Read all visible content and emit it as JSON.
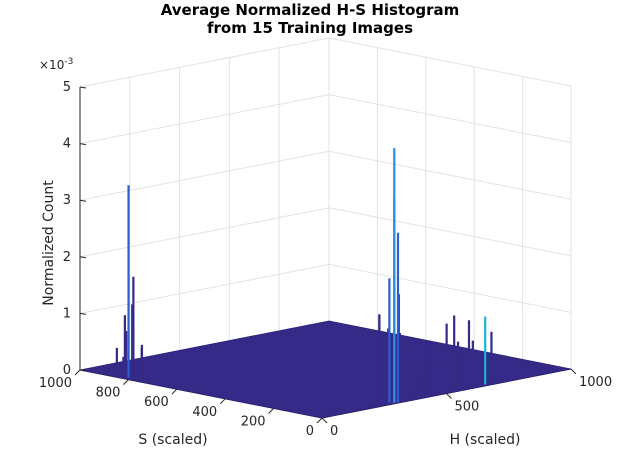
{
  "chart_data": {
    "type": "surface",
    "title": [
      "Average Normalized H-S Histogram",
      "from 15 Training Images"
    ],
    "xlabel": "H (scaled)",
    "ylabel": "S (scaled)",
    "zlabel": "Normalized Count",
    "z_exponent_base": "×10",
    "z_exponent_power": "-3",
    "xlim": [
      0,
      1000
    ],
    "ylim": [
      0,
      1000
    ],
    "zlim": [
      0,
      0.005
    ],
    "x_ticks": [
      {
        "value": 0,
        "label": "0"
      },
      {
        "value": 500,
        "label": "500"
      },
      {
        "value": 1000,
        "label": "1000"
      }
    ],
    "y_ticks": [
      {
        "value": 0,
        "label": "0"
      },
      {
        "value": 200,
        "label": "200"
      },
      {
        "value": 400,
        "label": "400"
      },
      {
        "value": 600,
        "label": "600"
      },
      {
        "value": 800,
        "label": "800"
      },
      {
        "value": 1000,
        "label": "1000"
      }
    ],
    "z_ticks": [
      {
        "value": 0,
        "label": "0"
      },
      {
        "value": 1,
        "label": "1"
      },
      {
        "value": 2,
        "label": "2"
      },
      {
        "value": 3,
        "label": "3"
      },
      {
        "value": 4,
        "label": "4"
      },
      {
        "value": 5,
        "label": "5"
      }
    ],
    "grid": true,
    "colormap": "parula",
    "surface_color": "#352a87",
    "peak_colors": [
      "#2a5fcf",
      "#2e8ce0",
      "#1fb0d8"
    ],
    "peaks": [
      {
        "x": 20,
        "y": 820,
        "z": 3.4
      },
      {
        "x": 20,
        "y": 800,
        "z": 1.8
      },
      {
        "x": 25,
        "y": 810,
        "z": 1.3
      },
      {
        "x": 15,
        "y": 830,
        "z": 1.1
      },
      {
        "x": 10,
        "y": 790,
        "z": 0.9
      },
      {
        "x": 30,
        "y": 840,
        "z": 0.8
      },
      {
        "x": 35,
        "y": 780,
        "z": 0.6
      },
      {
        "x": 12,
        "y": 860,
        "z": 0.5
      },
      {
        "x": 5,
        "y": 750,
        "z": 0.6
      },
      {
        "x": 40,
        "y": 760,
        "z": 0.4
      },
      {
        "x": 28,
        "y": 720,
        "z": 0.3
      },
      {
        "x": 48,
        "y": 870,
        "z": 0.3
      },
      {
        "x": 300,
        "y": 10,
        "z": 4.5
      },
      {
        "x": 305,
        "y": 15,
        "z": 3.6
      },
      {
        "x": 310,
        "y": 5,
        "z": 3.0
      },
      {
        "x": 290,
        "y": 20,
        "z": 2.2
      },
      {
        "x": 315,
        "y": 25,
        "z": 2.4
      },
      {
        "x": 320,
        "y": 12,
        "z": 1.9
      },
      {
        "x": 295,
        "y": 30,
        "z": 1.3
      },
      {
        "x": 330,
        "y": 18,
        "z": 1.2
      },
      {
        "x": 240,
        "y": 10,
        "z": 1.6
      },
      {
        "x": 250,
        "y": 20,
        "z": 1.6
      },
      {
        "x": 270,
        "y": 15,
        "z": 0.8
      },
      {
        "x": 280,
        "y": 35,
        "z": 1.1
      },
      {
        "x": 345,
        "y": 10,
        "z": 0.9
      },
      {
        "x": 360,
        "y": 22,
        "z": 0.8
      },
      {
        "x": 390,
        "y": 15,
        "z": 0.6
      },
      {
        "x": 420,
        "y": 8,
        "z": 0.4
      },
      {
        "x": 460,
        "y": 40,
        "z": 0.9
      },
      {
        "x": 520,
        "y": 20,
        "z": 1.2
      },
      {
        "x": 560,
        "y": 30,
        "z": 1.3
      },
      {
        "x": 600,
        "y": 10,
        "z": 1.2
      },
      {
        "x": 630,
        "y": 25,
        "z": 0.8
      },
      {
        "x": 670,
        "y": 15,
        "z": 1.2
      },
      {
        "x": 700,
        "y": 20,
        "z": 0.9
      },
      {
        "x": 540,
        "y": 60,
        "z": 0.7
      },
      {
        "x": 590,
        "y": 45,
        "z": 0.8
      },
      {
        "x": 650,
        "y": 50,
        "z": 0.5
      },
      {
        "x": 470,
        "y": 10,
        "z": 0.5
      },
      {
        "x": 620,
        "y": 70,
        "z": 0.4
      }
    ]
  }
}
